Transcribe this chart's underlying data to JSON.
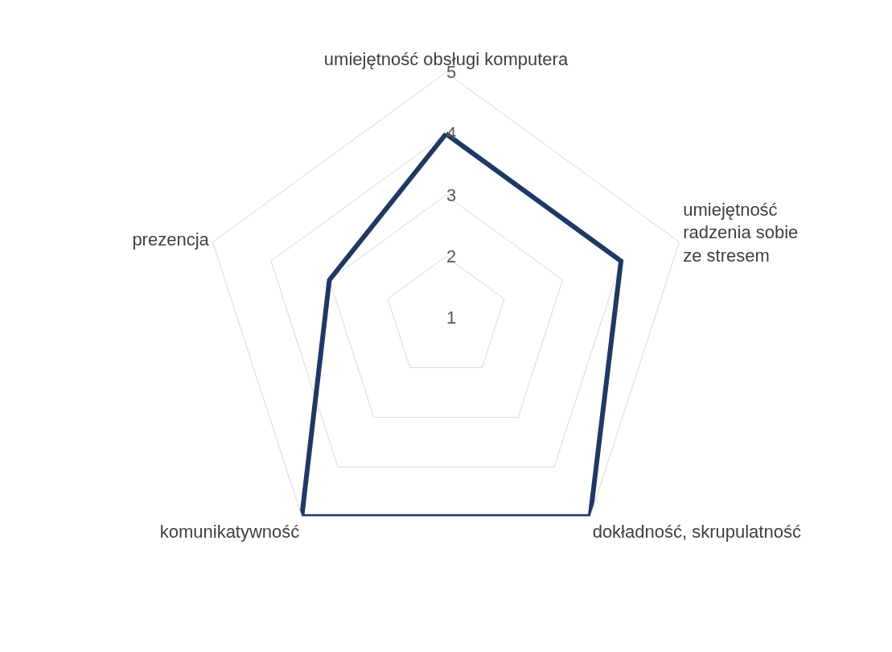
{
  "chart_data": {
    "type": "radar",
    "categories": [
      "umiejętność obsługi komputera",
      "umiejętność radzenia sobie ze stresem",
      "dokładność, skrupulatność",
      "komunikatywność",
      "prezencja"
    ],
    "series": [
      {
        "color": "#1f3864",
        "values": [
          4,
          4,
          5,
          5,
          3
        ]
      }
    ],
    "ylim": [
      1,
      5
    ],
    "yticks": [
      1,
      2,
      3,
      4,
      5
    ],
    "grid": true,
    "legend": false,
    "marker": "none",
    "line_style": "solid"
  }
}
